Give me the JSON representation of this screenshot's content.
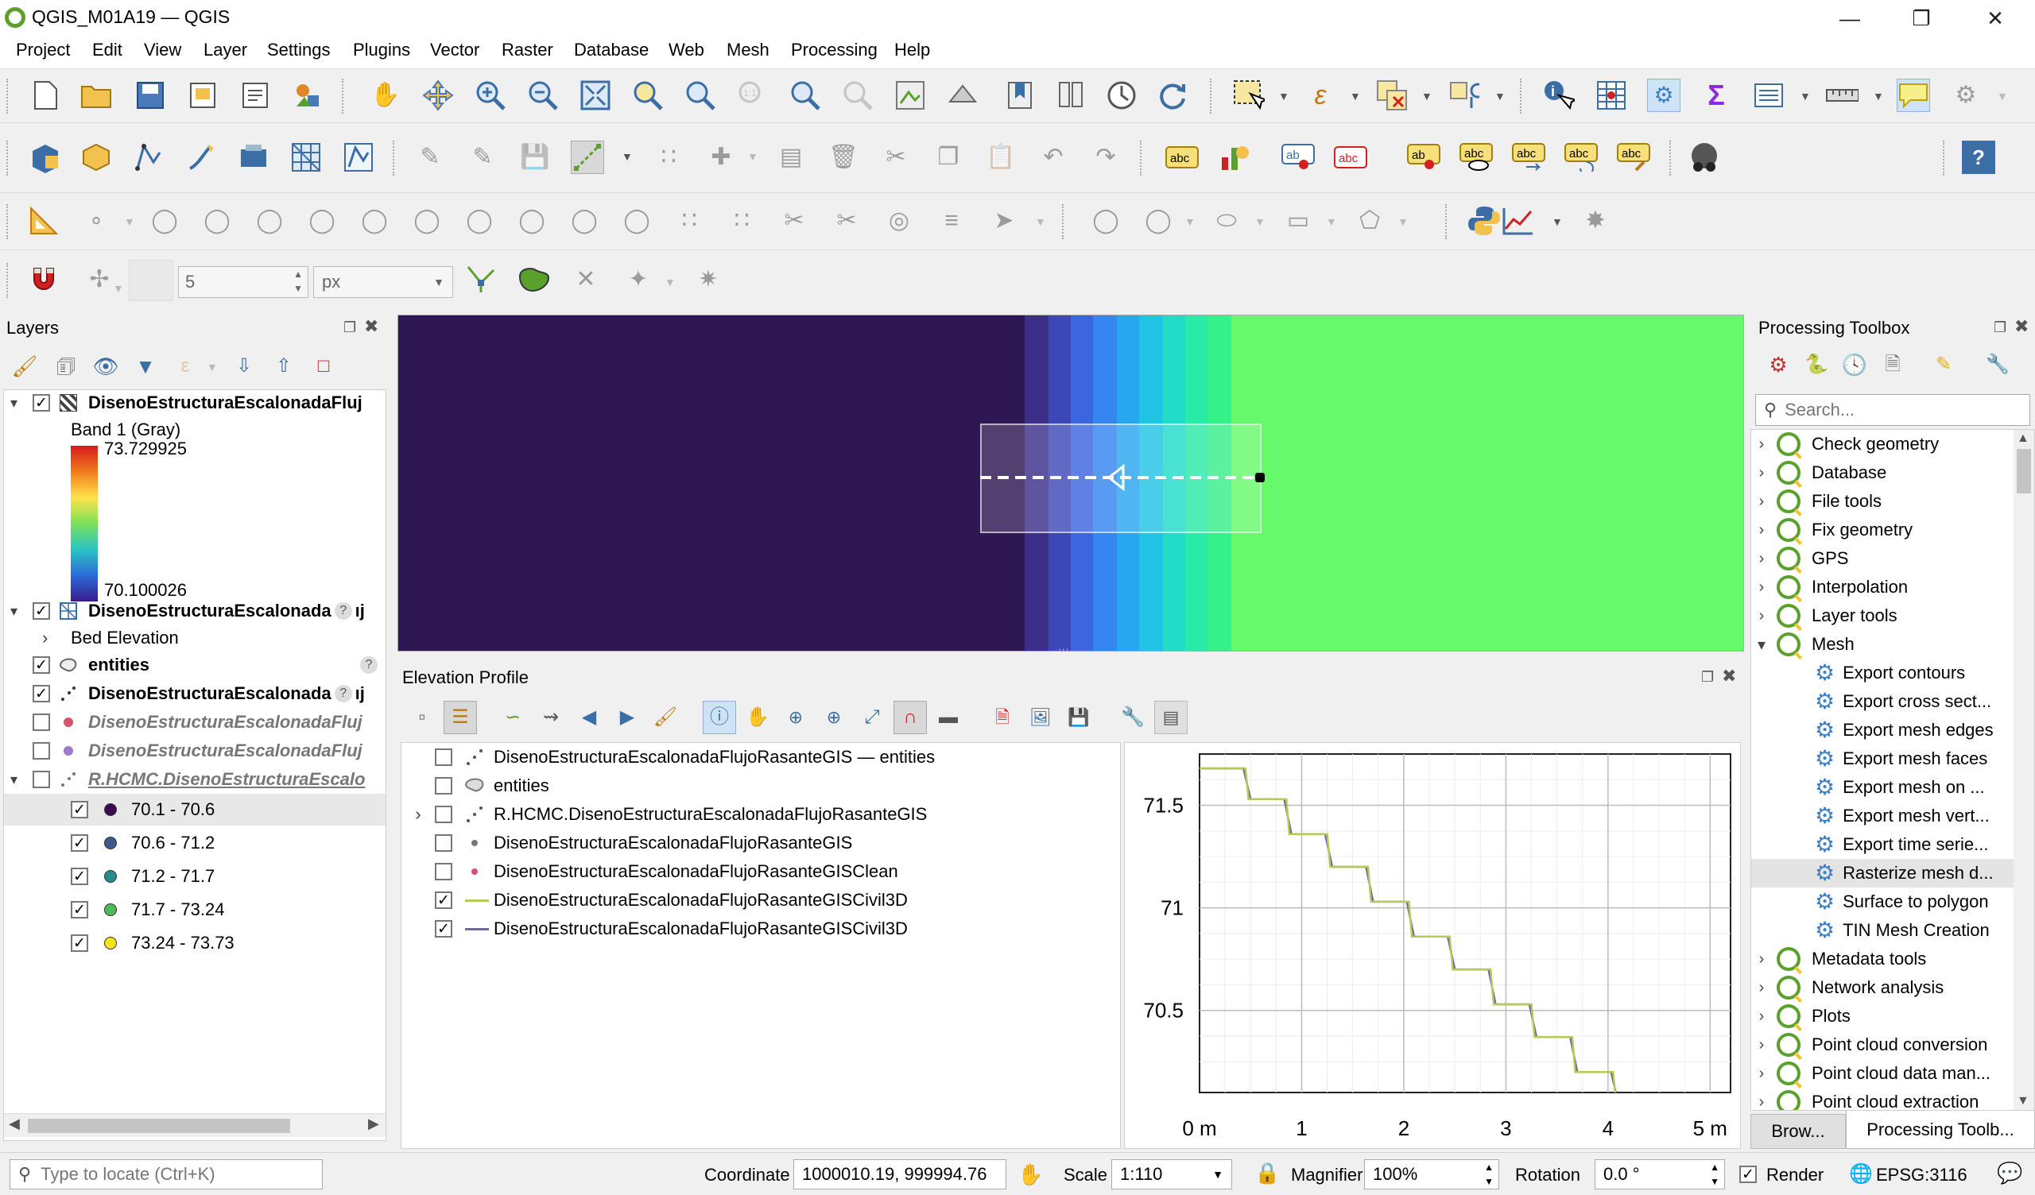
{
  "window": {
    "title": "QGIS_M01A19 — QGIS",
    "minimize": "—",
    "maximize": "❐",
    "close": "✕"
  },
  "menu": [
    "Project",
    "Edit",
    "View",
    "Layer",
    "Settings",
    "Plugins",
    "Vector",
    "Raster",
    "Database",
    "Web",
    "Mesh",
    "Processing",
    "Help"
  ],
  "snapping": {
    "tolerance": "5",
    "units": "px"
  },
  "layers_panel": {
    "title": "Layers",
    "items": [
      {
        "name": "DisenoEstructuraEscalonadaFluj",
        "checked": true,
        "expand": "▾"
      },
      {
        "name": "Band 1 (Gray)"
      },
      {
        "name": "73.729925"
      },
      {
        "name": "70.100026"
      },
      {
        "name": "DisenoEstructuraEscalonada",
        "checked": true,
        "expand": "▾",
        "badge": "?",
        "suffix": "ıj"
      },
      {
        "name": "Bed Elevation",
        "expand": "›"
      },
      {
        "name": "entities",
        "checked": true,
        "badge": "?"
      },
      {
        "name": "DisenoEstructuraEscalonada",
        "checked": true,
        "badge": "?",
        "suffix": "ıj"
      },
      {
        "name": "DisenoEstructuraEscalonadaFluj",
        "checked": false
      },
      {
        "name": "DisenoEstructuraEscalonadaFluj",
        "checked": false
      },
      {
        "name": "R.HCMC.DisenoEstructuraEscalo",
        "checked": false,
        "expand": "▾"
      },
      {
        "name": "70.1 - 70.6",
        "checked": true
      },
      {
        "name": "70.6 - 71.2",
        "checked": true
      },
      {
        "name": "71.2 - 71.7",
        "checked": true
      },
      {
        "name": "71.7 - 73.24",
        "checked": true
      },
      {
        "name": "73.24 - 73.73",
        "checked": true
      }
    ],
    "class_colors": [
      "#3b0a4f",
      "#3d5a8a",
      "#2a8c8a",
      "#4fb85a",
      "#f4e21a"
    ]
  },
  "elevation_profile": {
    "title": "Elevation Profile",
    "layers": [
      {
        "name": "DisenoEstructuraEscalonadaFlujoRasanteGIS — entities",
        "checked": false
      },
      {
        "name": "entities",
        "checked": false
      },
      {
        "name": "R.HCMC.DisenoEstructuraEscalonadaFlujoRasanteGIS",
        "checked": false,
        "expand": "›"
      },
      {
        "name": "DisenoEstructuraEscalonadaFlujoRasanteGIS",
        "checked": false
      },
      {
        "name": "DisenoEstructuraEscalonadaFlujoRasanteGISClean",
        "checked": false
      },
      {
        "name": "DisenoEstructuraEscalonadaFlujoRasanteGISCivil3D",
        "checked": true
      },
      {
        "name": "DisenoEstructuraEscalonadaFlujoRasanteGISCivil3D",
        "checked": true
      }
    ]
  },
  "chart_data": {
    "type": "line",
    "xlabel": "",
    "ylabel": "",
    "xlim": [
      0,
      5.2
    ],
    "ylim": [
      70.1,
      71.75
    ],
    "x_ticks": [
      {
        "v": 0,
        "label": "0 m"
      },
      {
        "v": 1,
        "label": "1"
      },
      {
        "v": 2,
        "label": "2"
      },
      {
        "v": 3,
        "label": "3"
      },
      {
        "v": 4,
        "label": "4"
      },
      {
        "v": 5,
        "label": "5 m"
      }
    ],
    "y_ticks": [
      {
        "v": 71.5,
        "label": "71.5"
      },
      {
        "v": 71,
        "label": "71"
      },
      {
        "v": 70.5,
        "label": "70.5"
      }
    ],
    "grid": true,
    "series": [
      {
        "color": "#b7c957",
        "x": [
          0,
          0.45,
          0.48,
          0.85,
          0.88,
          1.25,
          1.28,
          1.65,
          1.68,
          2.05,
          2.08,
          2.45,
          2.48,
          2.85,
          2.88,
          3.25,
          3.28,
          3.65,
          3.68,
          4.05,
          4.08,
          4.45,
          4.48,
          5.15
        ],
        "y": [
          71.68,
          71.68,
          71.53,
          71.53,
          71.36,
          71.36,
          71.2,
          71.2,
          71.03,
          71.03,
          70.86,
          70.86,
          70.7,
          70.7,
          70.53,
          70.53,
          70.37,
          70.37,
          70.2,
          70.2,
          70.05,
          70.05,
          69.88,
          69.88
        ]
      },
      {
        "color": "#6e6aa0",
        "x": [
          0,
          0.43,
          0.5,
          0.83,
          0.9,
          1.23,
          1.3,
          1.63,
          1.7,
          2.03,
          2.1,
          2.43,
          2.5,
          2.83,
          2.9,
          3.23,
          3.3,
          3.63,
          3.7,
          4.03,
          4.1,
          4.43,
          4.5,
          5.15
        ],
        "y": [
          71.68,
          71.68,
          71.53,
          71.53,
          71.36,
          71.36,
          71.2,
          71.2,
          71.03,
          71.03,
          70.86,
          70.86,
          70.7,
          70.7,
          70.53,
          70.53,
          70.37,
          70.37,
          70.2,
          70.2,
          70.05,
          70.05,
          69.88,
          69.88
        ]
      }
    ]
  },
  "processing_toolbox": {
    "title": "Processing Toolbox",
    "search_placeholder": "Search...",
    "items": [
      {
        "label": "Check geometry",
        "type": "group"
      },
      {
        "label": "Database",
        "type": "group"
      },
      {
        "label": "File tools",
        "type": "group"
      },
      {
        "label": "Fix geometry",
        "type": "group"
      },
      {
        "label": "GPS",
        "type": "group"
      },
      {
        "label": "Interpolation",
        "type": "group"
      },
      {
        "label": "Layer tools",
        "type": "group"
      },
      {
        "label": "Mesh",
        "type": "group-open"
      },
      {
        "label": "Export contours",
        "type": "tool"
      },
      {
        "label": "Export cross sect...",
        "type": "tool"
      },
      {
        "label": "Export mesh edges",
        "type": "tool"
      },
      {
        "label": "Export mesh faces",
        "type": "tool"
      },
      {
        "label": "Export mesh on ...",
        "type": "tool"
      },
      {
        "label": "Export mesh vert...",
        "type": "tool"
      },
      {
        "label": "Export time serie...",
        "type": "tool"
      },
      {
        "label": "Rasterize mesh d...",
        "type": "tool",
        "selected": true
      },
      {
        "label": "Surface to polygon",
        "type": "tool"
      },
      {
        "label": "TIN Mesh Creation",
        "type": "tool"
      },
      {
        "label": "Metadata tools",
        "type": "group"
      },
      {
        "label": "Network analysis",
        "type": "group"
      },
      {
        "label": "Plots",
        "type": "group"
      },
      {
        "label": "Point cloud conversion",
        "type": "group"
      },
      {
        "label": "Point cloud data man...",
        "type": "group"
      },
      {
        "label": "Point cloud extraction",
        "type": "group"
      }
    ],
    "tabs": [
      "Brow...",
      "Processing Toolb..."
    ]
  },
  "status": {
    "locate_placeholder": "Type to locate (Ctrl+K)",
    "coordinate_label": "Coordinate",
    "coordinate": "1000010.19, 999994.76",
    "scale_label": "Scale",
    "scale": "1:110",
    "magnifier_label": "Magnifier",
    "magnifier": "100%",
    "rotation_label": "Rotation",
    "rotation": "0.0 °",
    "render_label": "Render",
    "crs": "EPSG:3116"
  }
}
